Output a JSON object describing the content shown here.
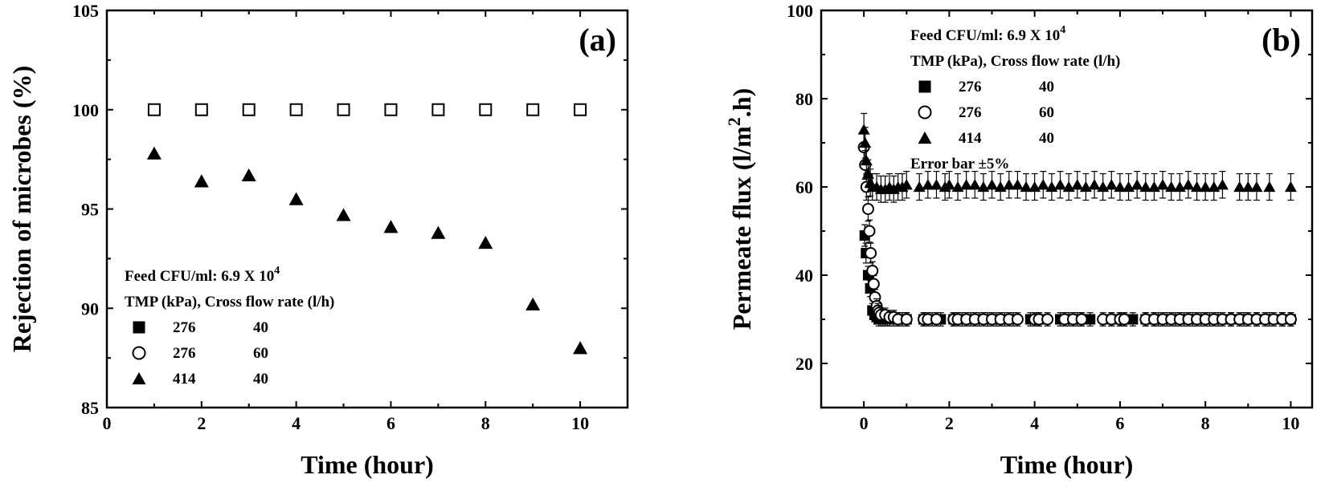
{
  "chart_data": [
    {
      "type": "scatter",
      "panel_label": "(a)",
      "xlabel": "Time (hour)",
      "ylabel": "Rejection of microbes (%)",
      "xlim": [
        0,
        11
      ],
      "ylim": [
        85,
        105
      ],
      "xticks": [
        0,
        2,
        4,
        6,
        8,
        10
      ],
      "yticks": [
        85,
        90,
        95,
        100,
        105
      ],
      "annotation_lines": [
        {
          "text": "Feed CFU/ml: 6.9 X 10",
          "sup": "4"
        },
        {
          "text": "TMP (kPa), Cross flow rate (l/h)",
          "sup": ""
        }
      ],
      "legend": [
        {
          "marker": "filled-square",
          "tmp": "276",
          "rate": "40"
        },
        {
          "marker": "open-circle",
          "tmp": "276",
          "rate": "60"
        },
        {
          "marker": "filled-triangle",
          "tmp": "414",
          "rate": "40"
        }
      ],
      "series": [
        {
          "marker": "open-square",
          "x": [
            1,
            2,
            3,
            4,
            5,
            6,
            7,
            8,
            9,
            10
          ],
          "y": [
            100,
            100,
            100,
            100,
            100,
            100,
            100,
            100,
            100,
            100
          ]
        },
        {
          "marker": "filled-triangle",
          "x": [
            1,
            2,
            3,
            4,
            5,
            6,
            7,
            8,
            9,
            10
          ],
          "y": [
            97.8,
            96.4,
            96.7,
            95.5,
            94.7,
            94.1,
            93.8,
            93.3,
            90.2,
            88.0
          ]
        }
      ]
    },
    {
      "type": "scatter",
      "panel_label": "(b)",
      "xlabel": "Time (hour)",
      "ylabel": "Permeate flux (l/m",
      "ylabel_sup": "2",
      "ylabel_tail": ".h)",
      "xlim": [
        -1,
        10.5
      ],
      "ylim": [
        10,
        100
      ],
      "xticks": [
        0,
        2,
        4,
        6,
        8,
        10
      ],
      "yticks": [
        20,
        40,
        60,
        80,
        100
      ],
      "annotation_lines": [
        {
          "text": "Feed CFU/ml: 6.9 X 10",
          "sup": "4"
        },
        {
          "text": "TMP (kPa), Cross flow rate (l/h)",
          "sup": ""
        }
      ],
      "legend": [
        {
          "marker": "filled-square",
          "tmp": "276",
          "rate": "40"
        },
        {
          "marker": "open-circle",
          "tmp": "276",
          "rate": "60"
        },
        {
          "marker": "filled-triangle",
          "tmp": "414",
          "rate": "40"
        }
      ],
      "error_note": "Error bar ±5%",
      "error_fraction": 0.05,
      "series": [
        {
          "marker": "filled-square",
          "x": [
            0.02,
            0.05,
            0.1,
            0.15,
            0.2,
            0.25,
            0.3,
            0.35,
            0.4,
            0.45,
            0.5,
            0.55,
            0.6,
            0.7,
            0.8,
            0.9,
            1.0,
            1.4,
            1.6,
            1.8,
            2.1,
            2.3,
            2.5,
            2.7,
            2.9,
            3.1,
            3.3,
            3.5,
            3.9,
            4.1,
            4.6,
            4.8,
            5.0,
            5.1,
            5.3,
            5.8,
            6.0,
            6.1,
            6.3,
            6.6,
            6.8,
            6.9,
            7.1,
            7.3,
            7.5,
            7.7,
            7.9,
            8.1,
            8.3,
            8.6,
            8.9,
            9.2,
            9.5,
            9.8,
            10.0
          ],
          "y": [
            49,
            45,
            40,
            37,
            32,
            31,
            30.5,
            30,
            30,
            30,
            30,
            30,
            30,
            30,
            30,
            30,
            30,
            30,
            30,
            30,
            30,
            30,
            30,
            30,
            30,
            30,
            30,
            30,
            30,
            30,
            30,
            30,
            30,
            30,
            30,
            30,
            30,
            30,
            30,
            30,
            30,
            30,
            30,
            30,
            30,
            30,
            30,
            30,
            30,
            30,
            30,
            30,
            30,
            30,
            30
          ]
        },
        {
          "marker": "open-circle",
          "x": [
            0.0,
            0.03,
            0.06,
            0.1,
            0.13,
            0.16,
            0.2,
            0.23,
            0.26,
            0.3,
            0.33,
            0.36,
            0.4,
            0.5,
            0.6,
            0.7,
            0.8,
            1.0,
            1.4,
            1.5,
            1.7,
            2.1,
            2.2,
            2.4,
            2.6,
            2.8,
            3.0,
            3.2,
            3.4,
            3.6,
            4.0,
            4.1,
            4.3,
            4.7,
            4.9,
            5.1,
            5.6,
            5.8,
            6.0,
            6.1,
            6.6,
            6.8,
            7.0,
            7.2,
            7.4,
            7.6,
            7.8,
            8.0,
            8.2,
            8.4,
            8.6,
            8.8,
            9.0,
            9.2,
            9.4,
            9.6,
            9.8,
            10.0
          ],
          "y": [
            69,
            65,
            60,
            55,
            50,
            45,
            41,
            38,
            35,
            33,
            32,
            31.5,
            31,
            31,
            30.5,
            30.5,
            30,
            30,
            30,
            30,
            30,
            30,
            30,
            30,
            30,
            30,
            30,
            30,
            30,
            30,
            30,
            30,
            30,
            30,
            30,
            30,
            30,
            30,
            30,
            30,
            30,
            30,
            30,
            30,
            30,
            30,
            30,
            30,
            30,
            30,
            30,
            30,
            30,
            30,
            30,
            30,
            30,
            30
          ]
        },
        {
          "marker": "filled-triangle",
          "x": [
            0.0,
            0.03,
            0.06,
            0.1,
            0.15,
            0.2,
            0.3,
            0.4,
            0.5,
            0.6,
            0.7,
            0.8,
            0.9,
            1.0,
            1.3,
            1.5,
            1.7,
            1.9,
            2.0,
            2.2,
            2.4,
            2.6,
            2.8,
            3.0,
            3.2,
            3.4,
            3.6,
            3.8,
            4.0,
            4.2,
            4.4,
            4.6,
            4.8,
            5.0,
            5.2,
            5.4,
            5.6,
            5.8,
            6.0,
            6.2,
            6.4,
            6.6,
            6.8,
            7.0,
            7.2,
            7.4,
            7.6,
            7.8,
            8.0,
            8.2,
            8.4,
            8.8,
            9.0,
            9.2,
            9.5,
            10.0
          ],
          "y": [
            73,
            70,
            66,
            63,
            61,
            60,
            60,
            59.5,
            59.5,
            60,
            59.5,
            60,
            60,
            60.5,
            60,
            60.5,
            60.5,
            60,
            60.5,
            60,
            60.5,
            60.5,
            60,
            60.5,
            60,
            60.5,
            60.5,
            60,
            60,
            60.5,
            60,
            60.5,
            60,
            60.5,
            60,
            60.5,
            60,
            60.5,
            60,
            60,
            60.5,
            60,
            60,
            60.5,
            60,
            60,
            60.5,
            60,
            60,
            60,
            60.5,
            60,
            60,
            60,
            60,
            60
          ]
        }
      ]
    }
  ]
}
